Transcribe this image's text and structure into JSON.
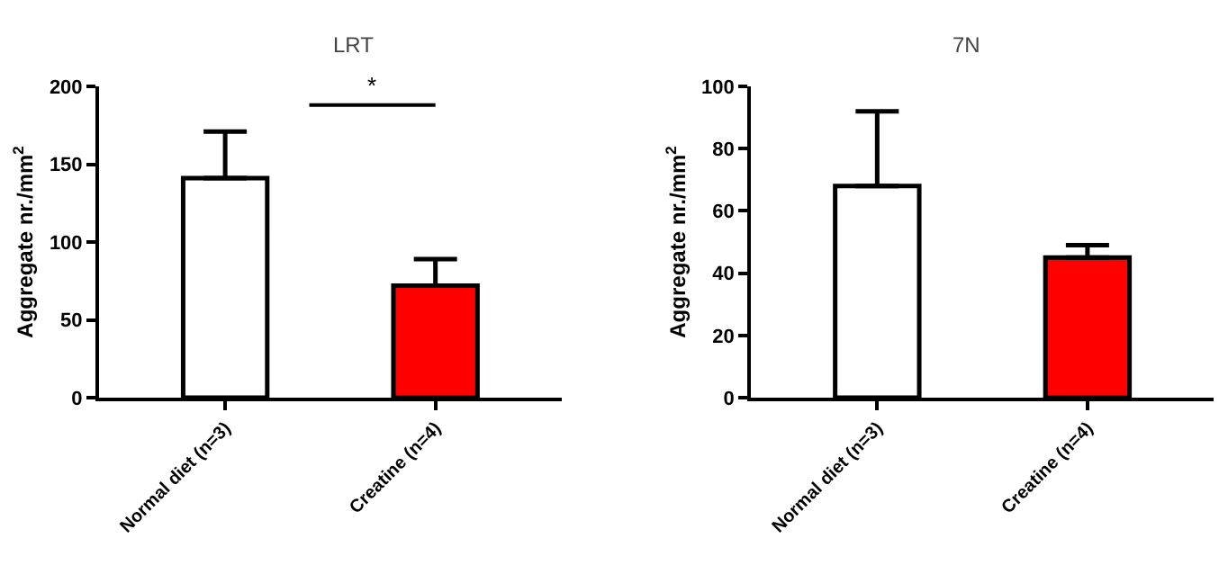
{
  "chart_data": [
    {
      "type": "bar",
      "title": "LRT",
      "ylabel": "Aggregate nr./mm$^{2}$",
      "categories": [
        "Normal diet (n=3)",
        "Creatine (n=4)"
      ],
      "values": [
        141,
        72
      ],
      "colors": [
        "#ffffff",
        "#ff0000"
      ],
      "errors": [
        [
          141,
          171
        ],
        [
          72,
          89
        ]
      ],
      "ylim": [
        0,
        200
      ],
      "yticks": [
        0,
        50,
        100,
        150,
        200
      ],
      "annotations": [
        "*"
      ]
    },
    {
      "type": "bar",
      "title": "7N",
      "ylabel": "Aggregate nr./mm$^{2}$",
      "categories": [
        "Normal diet (n=3)",
        "Creatine (n=4)"
      ],
      "values": [
        68,
        45
      ],
      "colors": [
        "#ffffff",
        "#ff0000"
      ],
      "errors": [
        [
          68,
          92
        ],
        [
          45,
          49
        ]
      ],
      "ylim": [
        0,
        100
      ],
      "yticks": [
        0,
        20,
        40,
        60,
        80,
        100
      ]
    }
  ]
}
